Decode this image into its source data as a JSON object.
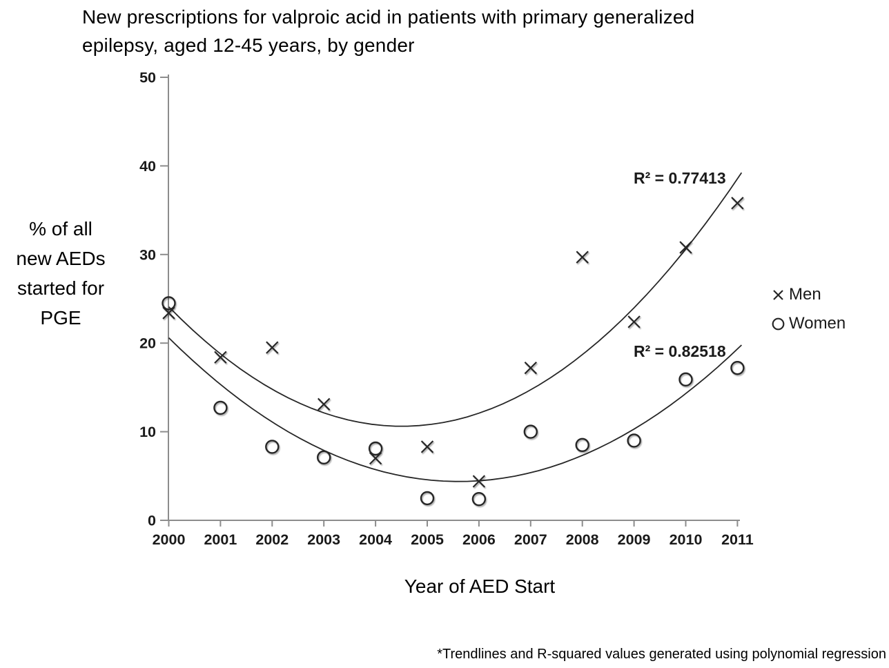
{
  "title": {
    "line1": "New prescriptions for valproic acid in patients with primary generalized",
    "line2": "epilepsy, aged 12-45 years, by gender"
  },
  "y_axis_label_lines": [
    "% of all",
    "new AEDs",
    "started for",
    "PGE"
  ],
  "x_axis_label": "Year of AED Start",
  "footnote": "*Trendlines and R-squared values generated using polynomial regression",
  "legend": [
    {
      "marker": "x-marker-icon",
      "label": "Men"
    },
    {
      "marker": "circle-marker-icon",
      "label": "Women"
    }
  ],
  "annotations": {
    "men_r2": "R² = 0.77413",
    "women_r2": "R² = 0.82518"
  },
  "colors": {
    "marker": "#262626",
    "trendline": "#262626",
    "axis": "#8c8c8c",
    "tick_text": "#1a1a1a",
    "title_text": "#000000"
  },
  "chart_data": {
    "type": "scatter",
    "x": [
      2000,
      2001,
      2002,
      2003,
      2004,
      2005,
      2006,
      2007,
      2008,
      2009,
      2010,
      2011
    ],
    "series": [
      {
        "name": "Men",
        "marker": "x",
        "values": [
          23.4,
          18.4,
          19.5,
          13.1,
          7.0,
          8.3,
          4.4,
          17.2,
          29.7,
          22.4,
          30.8,
          35.8
        ],
        "r_squared": "R² = 0.77413",
        "trendline_poly2": {
          "a": 0.663,
          "b": -5.98,
          "c": 24.1
        }
      },
      {
        "name": "Women",
        "marker": "circle",
        "values": [
          24.5,
          12.7,
          8.3,
          7.1,
          8.1,
          2.5,
          2.4,
          10.0,
          8.5,
          9.0,
          15.9,
          17.2
        ],
        "r_squared": "R² = 0.82518",
        "trendline_poly2": {
          "a": 0.515,
          "b": -5.78,
          "c": 20.6
        }
      }
    ],
    "xlabel": "Year of AED Start",
    "ylabel": "% of all new AEDs started for PGE",
    "ylim": [
      0,
      50
    ],
    "y_ticks": [
      0,
      10,
      20,
      30,
      40,
      50
    ],
    "grid": false,
    "legend_position": "right",
    "trendline_note": "polynomial regression"
  }
}
